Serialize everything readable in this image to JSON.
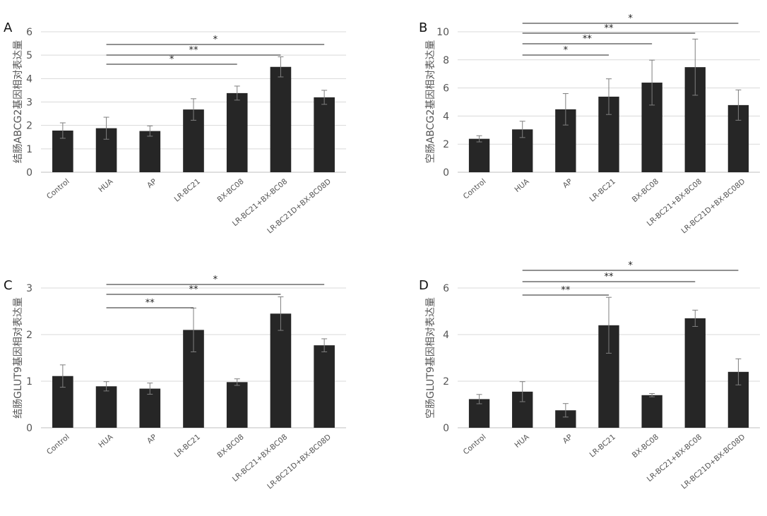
{
  "chart_data": [
    {
      "panel": "A",
      "type": "bar",
      "ylabel": "结肠ABCG2基因相对表达量",
      "ylim": [
        0,
        6
      ],
      "yticks": [
        0,
        1,
        2,
        3,
        4,
        5,
        6
      ],
      "categories": [
        "Control",
        "HUA",
        "AP",
        "LR-BC21",
        "BX-BC08",
        "LR-BC21+BX-BC08",
        "LR-BC21D+BX-BC08D"
      ],
      "values": [
        1.78,
        1.88,
        1.76,
        2.68,
        3.38,
        4.5,
        3.2
      ],
      "errors": [
        0.33,
        0.47,
        0.22,
        0.46,
        0.3,
        0.43,
        0.3
      ],
      "grid": true,
      "significance": [
        {
          "from": "HUA",
          "to": "BX-BC08",
          "label": "*"
        },
        {
          "from": "HUA",
          "to": "LR-BC21+BX-BC08",
          "label": "**"
        },
        {
          "from": "HUA",
          "to": "LR-BC21D+BX-BC08D",
          "label": "*"
        }
      ]
    },
    {
      "panel": "B",
      "type": "bar",
      "ylabel": "空肠ABCG2基因相对表达量",
      "ylim": [
        0,
        10
      ],
      "yticks": [
        0,
        2,
        4,
        6,
        8,
        10
      ],
      "categories": [
        "Control",
        "HUA",
        "AP",
        "LR-BC21",
        "BX-BC08",
        "LR-BC21+BX-BC08",
        "LR-BC21D+BX-BC08D"
      ],
      "values": [
        2.38,
        3.05,
        4.48,
        5.38,
        6.38,
        7.48,
        4.78
      ],
      "errors": [
        0.22,
        0.58,
        1.12,
        1.27,
        1.6,
        2.0,
        1.08
      ],
      "grid": true,
      "significance": [
        {
          "from": "HUA",
          "to": "LR-BC21",
          "label": "*"
        },
        {
          "from": "HUA",
          "to": "BX-BC08",
          "label": "**"
        },
        {
          "from": "HUA",
          "to": "LR-BC21+BX-BC08",
          "label": "**"
        },
        {
          "from": "HUA",
          "to": "LR-BC21D+BX-BC08D",
          "label": "*"
        }
      ]
    },
    {
      "panel": "C",
      "type": "bar",
      "ylabel": "结肠GLUT9基因相对表达量",
      "ylim": [
        0,
        3
      ],
      "yticks": [
        0,
        1,
        2,
        3
      ],
      "categories": [
        "Control",
        "HUA",
        "AP",
        "LR-BC21",
        "BX-BC08",
        "LR-BC21+BX-BC08",
        "LR-BC21D+BX-BC08D"
      ],
      "values": [
        1.11,
        0.89,
        0.84,
        2.1,
        0.98,
        2.45,
        1.77
      ],
      "errors": [
        0.24,
        0.1,
        0.12,
        0.47,
        0.07,
        0.36,
        0.14
      ],
      "grid": true,
      "significance": [
        {
          "from": "HUA",
          "to": "LR-BC21",
          "label": "**"
        },
        {
          "from": "HUA",
          "to": "LR-BC21+BX-BC08",
          "label": "**"
        },
        {
          "from": "HUA",
          "to": "LR-BC21D+BX-BC08D",
          "label": "*"
        }
      ]
    },
    {
      "panel": "D",
      "type": "bar",
      "ylabel": "空肠GLUT9基因相对表达量",
      "ylim": [
        0,
        6
      ],
      "yticks": [
        0,
        2,
        4,
        6
      ],
      "categories": [
        "Control",
        "HUA",
        "AP",
        "LR-BC21",
        "BX-BC08",
        "LR-BC21+BX-BC08",
        "LR-BC21D+BX-BC08D"
      ],
      "values": [
        1.23,
        1.55,
        0.75,
        4.4,
        1.4,
        4.7,
        2.4
      ],
      "errors": [
        0.2,
        0.43,
        0.29,
        1.2,
        0.07,
        0.35,
        0.56
      ],
      "grid": true,
      "significance": [
        {
          "from": "HUA",
          "to": "LR-BC21",
          "label": "**"
        },
        {
          "from": "HUA",
          "to": "LR-BC21+BX-BC08",
          "label": "**"
        },
        {
          "from": "HUA",
          "to": "LR-BC21D+BX-BC08D",
          "label": "*"
        }
      ]
    }
  ],
  "colors": {
    "bar": "#262626",
    "grid": "#d9d9d9",
    "axis": "#bfbfbf",
    "errorbar": "#7f7f7f",
    "bracket": "#222222"
  }
}
